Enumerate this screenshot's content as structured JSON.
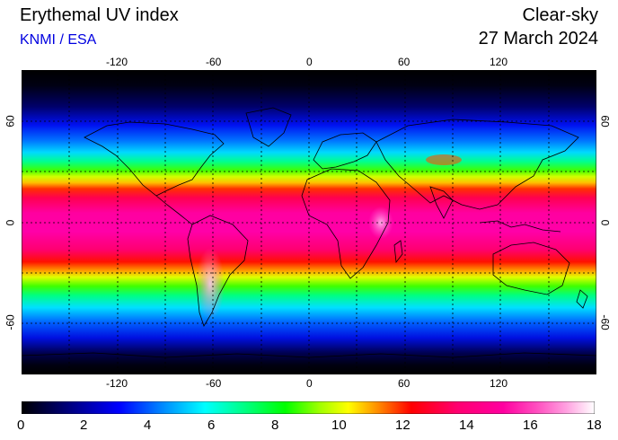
{
  "header": {
    "title": "Erythemal UV index",
    "credit": "KNMI / ESA",
    "mode": "Clear-sky",
    "date": "27 March 2024"
  },
  "map": {
    "longitude_ticks": [
      "-120",
      "-60",
      "0",
      "60",
      "120"
    ],
    "latitude_ticks": [
      "60",
      "0",
      "-60"
    ],
    "longitude_values": [
      -120,
      -60,
      0,
      60,
      120
    ],
    "latitude_values": [
      60,
      0,
      -60
    ],
    "projection": "equirectangular",
    "gridlines": "dashed"
  },
  "colorbar": {
    "labels": [
      "0",
      "2",
      "4",
      "6",
      "8",
      "10",
      "12",
      "14",
      "16",
      "18"
    ],
    "range": [
      0,
      18
    ],
    "colors": [
      "#000000",
      "#00007a",
      "#0000ff",
      "#0090ff",
      "#00ffff",
      "#00ff70",
      "#00ff00",
      "#a0ff00",
      "#ffff00",
      "#ff9000",
      "#ff0000",
      "#ff0070",
      "#ff00a0",
      "#ff50c0",
      "#ffa0e0",
      "#ffffff"
    ]
  },
  "colors": {
    "credit": "#0000e0",
    "background": "#ffffff"
  }
}
